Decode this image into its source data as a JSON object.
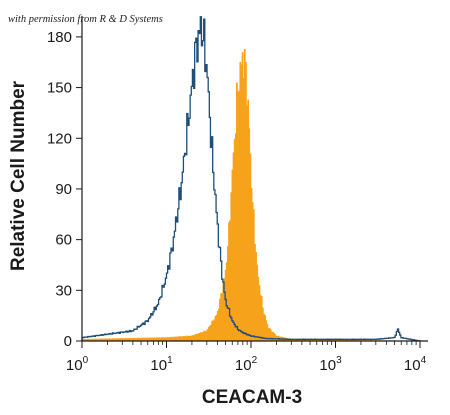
{
  "credit": "with permission from R & D Systems",
  "chart_data": {
    "type": "area",
    "xlabel": "CEACAM-3",
    "ylabel": "Relative Cell Number",
    "x_scale": "log",
    "xlim": [
      1,
      10000
    ],
    "ylim": [
      0,
      190
    ],
    "x_ticks": [
      1,
      10,
      100,
      1000,
      10000
    ],
    "x_tick_labels": [
      {
        "base": "10",
        "exp": "0"
      },
      {
        "base": "10",
        "exp": "1"
      },
      {
        "base": "10",
        "exp": "2"
      },
      {
        "base": "10",
        "exp": "3"
      },
      {
        "base": "10",
        "exp": "4"
      }
    ],
    "y_ticks": [
      0,
      30,
      60,
      90,
      120,
      150,
      180
    ],
    "grid": false,
    "legend": "none",
    "series": [
      {
        "style": "outline",
        "color": "#1f4e79",
        "x": [
          1,
          2,
          4,
          6,
          8,
          10,
          12,
          15,
          18,
          20,
          22,
          24,
          26,
          28,
          30,
          32,
          35,
          40,
          45,
          50,
          60,
          70,
          80,
          100,
          150,
          300,
          1000,
          3000,
          5000,
          5500,
          6000,
          10000
        ],
        "y": [
          2,
          4,
          6,
          12,
          22,
          38,
          58,
          92,
          128,
          150,
          170,
          180,
          186,
          176,
          162,
          140,
          108,
          70,
          42,
          24,
          12,
          7,
          5,
          3,
          1.5,
          1,
          1,
          1,
          2,
          7,
          2,
          0
        ]
      },
      {
        "style": "filled",
        "color": "#f7a21b",
        "x": [
          1,
          10,
          20,
          30,
          40,
          50,
          55,
          60,
          65,
          70,
          75,
          80,
          85,
          90,
          95,
          100,
          110,
          120,
          140,
          160,
          200,
          300,
          1000,
          10000
        ],
        "y": [
          1,
          2,
          3,
          6,
          16,
          40,
          65,
          98,
          125,
          150,
          160,
          168,
          165,
          150,
          128,
          100,
          65,
          40,
          18,
          8,
          3,
          1,
          0.5,
          0
        ]
      }
    ]
  }
}
